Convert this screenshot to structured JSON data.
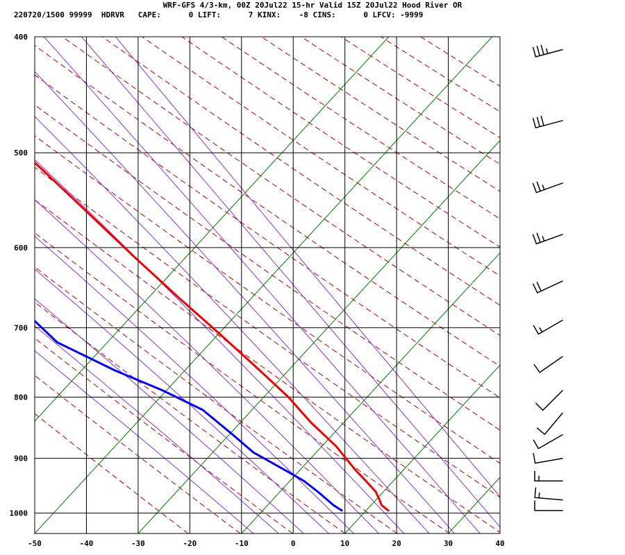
{
  "header": {
    "title": "WRF-GFS 4/3-km, 00Z 20Jul22 15-hr Valid 15Z 20Jul22 Hood River OR",
    "info_line": "220720/1500 99999  HDRVR   CAPE:      0 LIFT:      7 KINX:    -8 CINS:      0 LFCV: -9999"
  },
  "chart_data": {
    "type": "line",
    "title": "WRF-GFS 4/3-km, 00Z 20Jul22 15-hr Valid 15Z 20Jul22 Hood River OR",
    "xlabel": "",
    "ylabel": "",
    "x_ticks": [
      -50,
      -40,
      -30,
      -20,
      -10,
      0,
      10,
      20,
      30,
      40
    ],
    "y_ticks": [
      400,
      500,
      600,
      700,
      800,
      900,
      1000
    ],
    "xlim": [
      -50,
      40
    ],
    "ylim": [
      1040,
      400
    ],
    "y_scale": "log-pressure",
    "grid": true,
    "colors": {
      "temperature": "#ee0000",
      "dewpoint": "#0000ee",
      "dry_adiabat": "#aa0000",
      "moist_adiabat": "#8833cc",
      "mixing_ratio": "#007700",
      "grid": "#000000"
    },
    "series": [
      {
        "key": "temperature",
        "color": "#ee0000",
        "points": [
          {
            "p": 995,
            "t": 21.0
          },
          {
            "p": 985,
            "t": 20.3
          },
          {
            "p": 975,
            "t": 20.5
          },
          {
            "p": 960,
            "t": 20.7
          },
          {
            "p": 940,
            "t": 20.0
          },
          {
            "p": 920,
            "t": 19.2
          },
          {
            "p": 880,
            "t": 18.2
          },
          {
            "p": 840,
            "t": 16.0
          },
          {
            "p": 800,
            "t": 14.5
          },
          {
            "p": 760,
            "t": 12.0
          },
          {
            "p": 710,
            "t": 8.5
          },
          {
            "p": 660,
            "t": 4.5
          },
          {
            "p": 610,
            "t": 0.5
          },
          {
            "p": 560,
            "t": -3.5
          },
          {
            "p": 520,
            "t": -7.0
          },
          {
            "p": 480,
            "t": -11.0
          },
          {
            "p": 440,
            "t": -15.5
          },
          {
            "p": 410,
            "t": -19.5
          }
        ]
      },
      {
        "key": "dewpoint",
        "color": "#0000ee",
        "points": [
          {
            "p": 995,
            "t": 12.0
          },
          {
            "p": 985,
            "t": 11.0
          },
          {
            "p": 960,
            "t": 9.5
          },
          {
            "p": 940,
            "t": 8.0
          },
          {
            "p": 920,
            "t": 5.5
          },
          {
            "p": 890,
            "t": 1.5
          },
          {
            "p": 860,
            "t": -0.5
          },
          {
            "p": 820,
            "t": -3.5
          },
          {
            "p": 790,
            "t": -9.0
          },
          {
            "p": 760,
            "t": -16.0
          },
          {
            "p": 720,
            "t": -24.0
          },
          {
            "p": 690,
            "t": -26.0
          },
          {
            "p": 640,
            "t": -27.0
          },
          {
            "p": 590,
            "t": -30.0
          },
          {
            "p": 535,
            "t": -34.0
          },
          {
            "p": 500,
            "t": -35.0
          },
          {
            "p": 455,
            "t": -36.5
          },
          {
            "p": 410,
            "t": -38.0
          }
        ]
      }
    ],
    "wind_barbs": [
      {
        "p": 410,
        "dir": 255,
        "kt": 35
      },
      {
        "p": 470,
        "dir": 255,
        "kt": 30
      },
      {
        "p": 530,
        "dir": 250,
        "kt": 25
      },
      {
        "p": 585,
        "dir": 250,
        "kt": 25
      },
      {
        "p": 640,
        "dir": 245,
        "kt": 20
      },
      {
        "p": 690,
        "dir": 240,
        "kt": 15
      },
      {
        "p": 740,
        "dir": 235,
        "kt": 10
      },
      {
        "p": 790,
        "dir": 225,
        "kt": 10
      },
      {
        "p": 825,
        "dir": 220,
        "kt": 10
      },
      {
        "p": 860,
        "dir": 240,
        "kt": 10
      },
      {
        "p": 900,
        "dir": 260,
        "kt": 10
      },
      {
        "p": 940,
        "dir": 270,
        "kt": 15
      },
      {
        "p": 975,
        "dir": 275,
        "kt": 15
      },
      {
        "p": 995,
        "dir": 270,
        "kt": 10
      }
    ]
  }
}
